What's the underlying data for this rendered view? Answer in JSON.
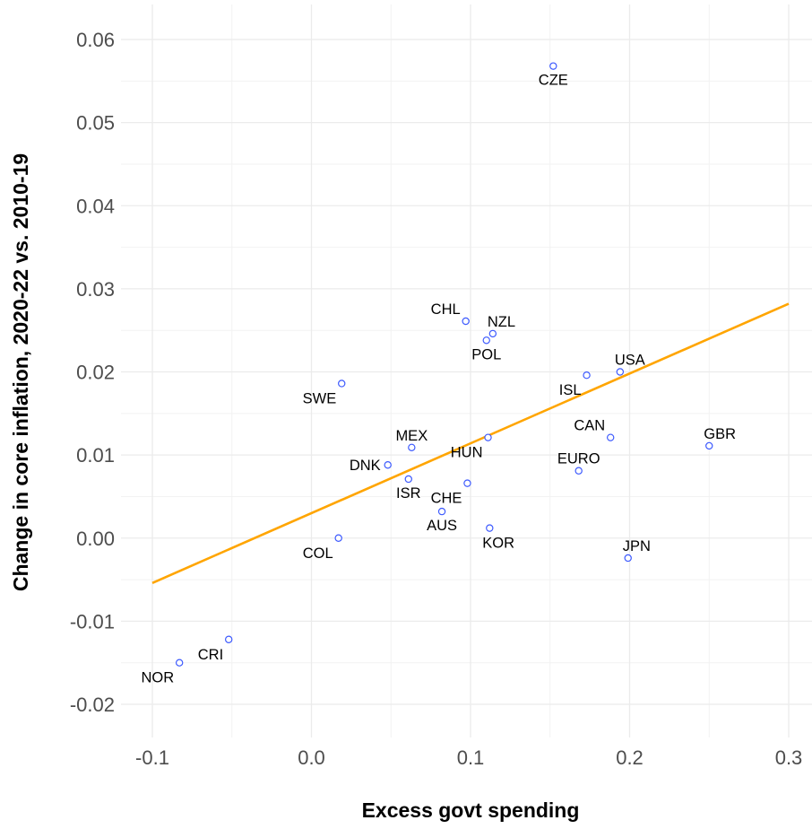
{
  "chart_data": {
    "type": "scatter",
    "title": "",
    "xlabel": "Excess govt spending",
    "ylabel": "Change in core inflation, 2020-22 vs. 2010-19",
    "xlim": [
      -0.115,
      0.305
    ],
    "ylim": [
      -0.0245,
      0.0635
    ],
    "x_ticks": [
      -0.1,
      0.0,
      0.1,
      0.2,
      0.3
    ],
    "x_tick_labels": [
      "-0.1",
      "0.0",
      "0.1",
      "0.2",
      "0.3"
    ],
    "y_ticks": [
      -0.02,
      -0.01,
      0.0,
      0.01,
      0.02,
      0.03,
      0.04,
      0.05,
      0.06
    ],
    "y_tick_labels": [
      "-0.02",
      "-0.01",
      "0.00",
      "0.01",
      "0.02",
      "0.03",
      "0.04",
      "0.05",
      "0.06"
    ],
    "grid": true,
    "point_color": "#3d5afe",
    "trend_color": "#ffa500",
    "trend_line": {
      "x": [
        -0.1,
        0.3
      ],
      "y": [
        -0.0054,
        0.0282
      ]
    },
    "points": [
      {
        "label": "CZE",
        "x": 0.152,
        "y": 0.0568,
        "pos": "below"
      },
      {
        "label": "CHL",
        "x": 0.097,
        "y": 0.0261,
        "pos": "above-left"
      },
      {
        "label": "NZL",
        "x": 0.114,
        "y": 0.0246,
        "pos": "above-right"
      },
      {
        "label": "POL",
        "x": 0.11,
        "y": 0.0238,
        "pos": "below"
      },
      {
        "label": "SWE",
        "x": 0.019,
        "y": 0.0186,
        "pos": "below-left"
      },
      {
        "label": "ISL",
        "x": 0.173,
        "y": 0.0196,
        "pos": "below-left"
      },
      {
        "label": "USA",
        "x": 0.194,
        "y": 0.02,
        "pos": "above-right"
      },
      {
        "label": "CAN",
        "x": 0.188,
        "y": 0.0121,
        "pos": "above-left"
      },
      {
        "label": "GBR",
        "x": 0.25,
        "y": 0.0111,
        "pos": "above-right"
      },
      {
        "label": "MEX",
        "x": 0.063,
        "y": 0.0109,
        "pos": "above"
      },
      {
        "label": "HUN",
        "x": 0.111,
        "y": 0.0121,
        "pos": "below-left"
      },
      {
        "label": "DNK",
        "x": 0.048,
        "y": 0.0088,
        "pos": "left"
      },
      {
        "label": "EURO",
        "x": 0.168,
        "y": 0.0081,
        "pos": "above"
      },
      {
        "label": "ISR",
        "x": 0.061,
        "y": 0.0071,
        "pos": "below"
      },
      {
        "label": "CHE",
        "x": 0.098,
        "y": 0.0066,
        "pos": "below-left"
      },
      {
        "label": "AUS",
        "x": 0.082,
        "y": 0.0032,
        "pos": "below"
      },
      {
        "label": "KOR",
        "x": 0.112,
        "y": 0.0012,
        "pos": "below-right"
      },
      {
        "label": "COL",
        "x": 0.017,
        "y": 0.0,
        "pos": "below-left"
      },
      {
        "label": "JPN",
        "x": 0.199,
        "y": -0.0024,
        "pos": "above-right"
      },
      {
        "label": "CRI",
        "x": -0.052,
        "y": -0.0122,
        "pos": "below-left"
      },
      {
        "label": "NOR",
        "x": -0.083,
        "y": -0.015,
        "pos": "below-left"
      }
    ]
  }
}
